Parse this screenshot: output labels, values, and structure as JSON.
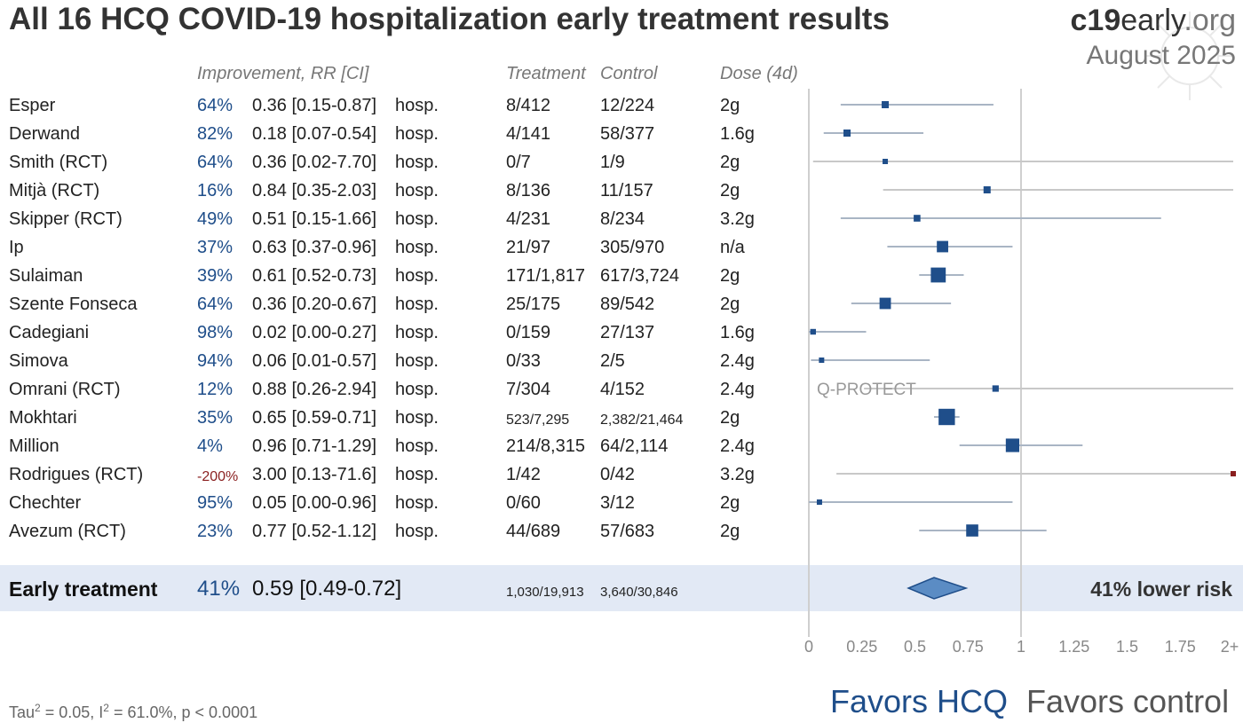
{
  "title": "All 16 HCQ COVID-19 hospitalization early treatment results",
  "brand": {
    "bold": "c19",
    "rest": "early",
    "suffix": ".org"
  },
  "date": "August 2025",
  "headers": {
    "improvement": "Improvement, RR [CI]",
    "treatment": "Treatment",
    "control": "Control",
    "dose": "Dose (4d)"
  },
  "colors": {
    "accent": "#1f4e8a",
    "negative": "#8a1f1f",
    "band": "#e2e9f5",
    "diamond": "#5b8cc4"
  },
  "studies": [
    {
      "name": "Esper",
      "improvement": "64%",
      "rr_text": "0.36 [0.15-0.87]",
      "outcome": "hosp.",
      "treatment": "8/412",
      "control": "12/224",
      "dose": "2g",
      "rr": 0.36,
      "lo": 0.15,
      "hi": 0.87,
      "weight": 1
    },
    {
      "name": "Derwand",
      "improvement": "82%",
      "rr_text": "0.18 [0.07-0.54]",
      "outcome": "hosp.",
      "treatment": "4/141",
      "control": "58/377",
      "dose": "1.6g",
      "rr": 0.18,
      "lo": 0.07,
      "hi": 0.54,
      "weight": 1
    },
    {
      "name": "Smith (RCT)",
      "improvement": "64%",
      "rr_text": "0.36 [0.02-7.70]",
      "outcome": "hosp.",
      "treatment": "0/7",
      "control": "1/9",
      "dose": "2g",
      "rr": 0.36,
      "lo": 0.02,
      "hi": 7.7,
      "weight": 0.5
    },
    {
      "name": "Mitjà (RCT)",
      "improvement": "16%",
      "rr_text": "0.84 [0.35-2.03]",
      "outcome": "hosp.",
      "treatment": "8/136",
      "control": "11/157",
      "dose": "2g",
      "rr": 0.84,
      "lo": 0.35,
      "hi": 2.03,
      "weight": 1
    },
    {
      "name": "Skipper (RCT)",
      "improvement": "49%",
      "rr_text": "0.51 [0.15-1.66]",
      "outcome": "hosp.",
      "treatment": "4/231",
      "control": "8/234",
      "dose": "3.2g",
      "rr": 0.51,
      "lo": 0.15,
      "hi": 1.66,
      "weight": 0.9
    },
    {
      "name": "Ip",
      "improvement": "37%",
      "rr_text": "0.63 [0.37-0.96]",
      "outcome": "hosp.",
      "treatment": "21/97",
      "control": "305/970",
      "dose": "n/a",
      "rr": 0.63,
      "lo": 0.37,
      "hi": 0.96,
      "weight": 2.2
    },
    {
      "name": "Sulaiman",
      "improvement": "39%",
      "rr_text": "0.61 [0.52-0.73]",
      "outcome": "hosp.",
      "treatment": "171/1,817",
      "control": "617/3,724",
      "dose": "2g",
      "rr": 0.61,
      "lo": 0.52,
      "hi": 0.73,
      "weight": 3.2
    },
    {
      "name": "Szente Fonseca",
      "improvement": "64%",
      "rr_text": "0.36 [0.20-0.67]",
      "outcome": "hosp.",
      "treatment": "25/175",
      "control": "89/542",
      "dose": "2g",
      "rr": 0.36,
      "lo": 0.2,
      "hi": 0.67,
      "weight": 2.2
    },
    {
      "name": "Cadegiani",
      "improvement": "98%",
      "rr_text": "0.02 [0.00-0.27]",
      "outcome": "hosp.",
      "treatment": "0/159",
      "control": "27/137",
      "dose": "1.6g",
      "rr": 0.02,
      "lo": 0.0,
      "hi": 0.27,
      "weight": 0.6
    },
    {
      "name": "Simova",
      "improvement": "94%",
      "rr_text": "0.06 [0.01-0.57]",
      "outcome": "hosp.",
      "treatment": "0/33",
      "control": "2/5",
      "dose": "2.4g",
      "rr": 0.06,
      "lo": 0.01,
      "hi": 0.57,
      "weight": 0.5
    },
    {
      "name": "Omrani (RCT)",
      "improvement": "12%",
      "rr_text": "0.88 [0.26-2.94]",
      "outcome": "hosp.",
      "treatment": "7/304",
      "control": "4/152",
      "dose": "2.4g",
      "rr": 0.88,
      "lo": 0.26,
      "hi": 2.94,
      "weight": 0.8,
      "annotation": "Q-PROTECT"
    },
    {
      "name": "Mokhtari",
      "improvement": "35%",
      "rr_text": "0.65 [0.59-0.71]",
      "outcome": "hosp.",
      "treatment": "523/7,295",
      "control": "2,382/21,464",
      "dose": "2g",
      "rr": 0.65,
      "lo": 0.59,
      "hi": 0.71,
      "weight": 3.6,
      "small": true
    },
    {
      "name": "Million",
      "improvement": "4%",
      "rr_text": "0.96 [0.71-1.29]",
      "outcome": "hosp.",
      "treatment": "214/8,315",
      "control": "64/2,114",
      "dose": "2.4g",
      "rr": 0.96,
      "lo": 0.71,
      "hi": 1.29,
      "weight": 2.8
    },
    {
      "name": "Rodrigues (RCT)",
      "improvement": "-200%",
      "rr_text": "3.00 [0.13-71.6]",
      "outcome": "hosp.",
      "treatment": "1/42",
      "control": "0/42",
      "dose": "3.2g",
      "rr": 3.0,
      "lo": 0.13,
      "hi": 71.6,
      "weight": 0.5,
      "negative": true
    },
    {
      "name": "Chechter",
      "improvement": "95%",
      "rr_text": "0.05 [0.00-0.96]",
      "outcome": "hosp.",
      "treatment": "0/60",
      "control": "3/12",
      "dose": "2g",
      "rr": 0.05,
      "lo": 0.0,
      "hi": 0.96,
      "weight": 0.5
    },
    {
      "name": "Avezum (RCT)",
      "improvement": "23%",
      "rr_text": "0.77 [0.52-1.12]",
      "outcome": "hosp.",
      "treatment": "44/689",
      "control": "57/683",
      "dose": "2g",
      "rr": 0.77,
      "lo": 0.52,
      "hi": 1.12,
      "weight": 2.4
    }
  ],
  "summary": {
    "label": "Early treatment",
    "improvement": "41%",
    "rr_text": "0.59 [0.49-0.72]",
    "treatment": "1,030/19,913",
    "control": "3,640/30,846",
    "rr": 0.59,
    "lo": 0.49,
    "hi": 0.72,
    "risk_text": "41% lower risk"
  },
  "stats": {
    "tau_label": "Tau",
    "tau_rest": " = 0.05, I",
    "i_rest": " = 61.0%, p < 0.0001",
    "sq": "2"
  },
  "favors": {
    "left": "Favors HCQ",
    "right": "Favors control"
  },
  "chart_data": {
    "type": "forest",
    "title": "All 16 HCQ COVID-19 hospitalization early treatment results",
    "xlim": [
      0,
      2
    ],
    "x_ticks": [
      "0",
      "0.25",
      "0.5",
      "0.75",
      "1",
      "1.25",
      "1.5",
      "1.75",
      "2+"
    ],
    "x_tick_values": [
      0,
      0.25,
      0.5,
      0.75,
      1,
      1.25,
      1.5,
      1.75,
      2
    ],
    "reference_line": 1
  }
}
